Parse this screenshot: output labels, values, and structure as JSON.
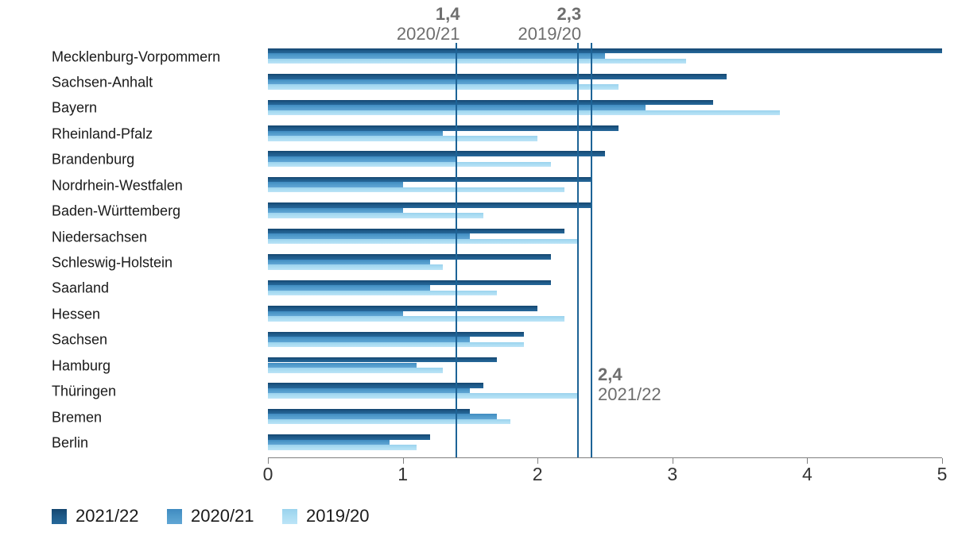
{
  "chart_data": {
    "type": "bar",
    "orientation": "horizontal",
    "title": "",
    "categories": [
      "Mecklenburg-Vorpommern",
      "Sachsen-Anhalt",
      "Bayern",
      "Rheinland-Pfalz",
      "Brandenburg",
      "Nordrhein-Westfalen",
      "Baden-Württemberg",
      "Niedersachsen",
      "Schleswig-Holstein",
      "Saarland",
      "Hessen",
      "Sachsen",
      "Hamburg",
      "Thüringen",
      "Bremen",
      "Berlin"
    ],
    "series": [
      {
        "name": "2021/22",
        "color": "#1d5c8f",
        "values": [
          5.0,
          3.4,
          3.3,
          2.6,
          2.5,
          2.4,
          2.4,
          2.2,
          2.1,
          2.1,
          2.0,
          1.9,
          1.7,
          1.6,
          1.5,
          1.2
        ]
      },
      {
        "name": "2020/21",
        "color": "#4a97cc",
        "values": [
          2.5,
          2.3,
          2.8,
          1.3,
          1.4,
          1.0,
          1.0,
          1.5,
          1.2,
          1.2,
          1.0,
          1.5,
          1.1,
          1.5,
          1.7,
          0.9
        ]
      },
      {
        "name": "2019/20",
        "color": "#a8d9f2",
        "values": [
          3.1,
          2.6,
          3.8,
          2.0,
          2.1,
          2.2,
          1.6,
          2.3,
          1.3,
          1.7,
          2.2,
          1.9,
          1.3,
          2.3,
          1.8,
          1.1
        ]
      }
    ],
    "xlim": [
      0,
      5
    ],
    "x_ticks": [
      "0",
      "1",
      "2",
      "3",
      "4",
      "5"
    ],
    "grid": false,
    "legend_position": "bottom-left",
    "legend": [
      "2021/22",
      "2020/21",
      "2019/20"
    ],
    "reference_lines": [
      {
        "value": 1.4,
        "value_label": "1,4",
        "season_label": "2020/21",
        "label_position": "top"
      },
      {
        "value": 2.3,
        "value_label": "2,3",
        "season_label": "2019/20",
        "label_position": "top"
      },
      {
        "value": 2.4,
        "value_label": "2,4",
        "season_label": "2021/22",
        "label_position": "middle-right"
      }
    ]
  }
}
